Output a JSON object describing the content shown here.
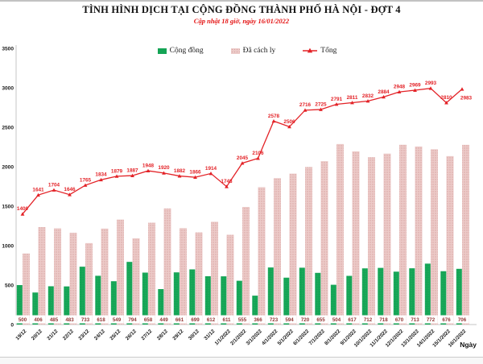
{
  "title": "TÌNH HÌNH DỊCH TẠI CỘNG ĐỒNG THÀNH PHỐ HÀ NỘI - ĐỢT 4",
  "subtitle": "Cập nhật 18 giờ, ngày 16/01/2022",
  "legend": [
    {
      "label": "Cộng đồng",
      "color": "#14a455"
    },
    {
      "label": "Đã cách ly",
      "color": "#eccac8"
    },
    {
      "label": "Tổng",
      "color": "#e32227"
    }
  ],
  "colors": {
    "community_green": "#14a455",
    "quarantine_pink": "#eccac8",
    "quarantine_dot": "#d8a3a1",
    "total_red": "#e32227",
    "value_label_dark_red": "#943634",
    "axis_gray": "#c6c6c6"
  },
  "chart_data": {
    "type": "bar",
    "title": "TÌNH HÌNH DỊCH TẠI CỘNG ĐỒNG THÀNH PHỐ HÀ NỘI - ĐỢT 4",
    "subtitle": "Cập nhật 18 giờ, ngày 16/01/2022",
    "xlabel": "Ngày",
    "ylabel": "",
    "ylim": [
      0,
      3500
    ],
    "y_ticks": [
      0,
      500,
      1000,
      1500,
      2000,
      2500,
      3000,
      3500
    ],
    "grid": false,
    "legend_position": "top",
    "categories": [
      "19/12",
      "20/12",
      "21/12",
      "22/12",
      "23/12",
      "24/12",
      "25/12",
      "26/12",
      "27/12",
      "28/12",
      "29/12",
      "30/12",
      "31/12",
      "1/1/2022",
      "2/1/2022",
      "3/1/2022",
      "4/1/2022",
      "5/1/2022",
      "6/1/2022",
      "7/1/2022",
      "8/1/2022",
      "9/1/2022",
      "10/1/2022",
      "11/1/2022",
      "12/1/2022",
      "13/1/2022",
      "14/1/2022",
      "15/1/2022",
      "16/1/2022"
    ],
    "series": [
      {
        "name": "Cộng đồng",
        "type": "bar",
        "color": "#14a455",
        "labels_shown": true,
        "values": [
          500,
          406,
          485,
          483,
          733,
          618,
          549,
          794,
          658,
          449,
          661,
          699,
          612,
          611,
          555,
          366,
          723,
          594,
          720,
          655,
          504,
          617,
          712,
          718,
          670,
          713,
          772,
          676,
          706
        ]
      },
      {
        "name": "Đã cách ly",
        "type": "bar",
        "color": "#eccac8",
        "labels_shown": false,
        "values": [
          900,
          1235,
          1219,
          1163,
          1032,
          1216,
          1330,
          1093,
          1290,
          1471,
          1221,
          1167,
          1302,
          1137,
          1490,
          1740,
          1855,
          1912,
          1996,
          2070,
          2287,
          2194,
          2120,
          2166,
          2278,
          2256,
          2221,
          2134,
          2277
        ]
      },
      {
        "name": "Tổng",
        "type": "line",
        "color": "#e32227",
        "labels_shown": true,
        "values": [
          1400,
          1641,
          1704,
          1646,
          1765,
          1834,
          1879,
          1887,
          1948,
          1920,
          1882,
          1866,
          1914,
          1748,
          2045,
          2106,
          2578,
          2506,
          2716,
          2725,
          2791,
          2811,
          2832,
          2884,
          2948,
          2969,
          2993,
          2810,
          2983
        ]
      }
    ]
  }
}
